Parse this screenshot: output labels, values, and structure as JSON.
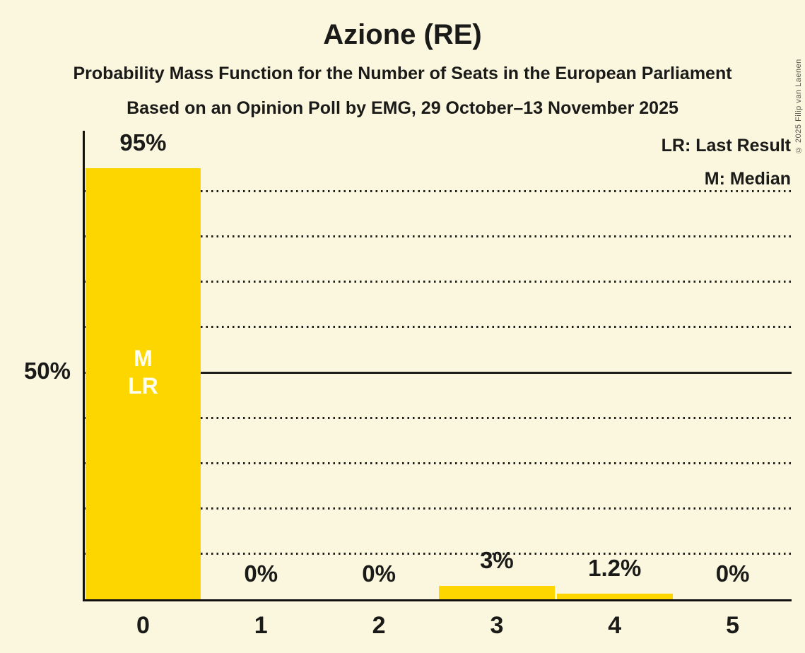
{
  "header": {
    "title": "Azione (RE)",
    "subtitle1": "Probability Mass Function for the Number of Seats in the European Parliament",
    "subtitle2": "Based on an Opinion Poll by EMG, 29 October–13 November 2025"
  },
  "legend": {
    "line1": "LR: Last Result",
    "line2": "M: Median"
  },
  "copyright": "© 2025 Filip van Laenen",
  "colors": {
    "background": "#FBF6DE",
    "bar": "#FDD600",
    "text": "#1A1A18",
    "gridline": "#1D1D1B",
    "annotation_text": "#FFFEF2"
  },
  "chart_data": {
    "type": "bar",
    "title": "Azione (RE)",
    "categories": [
      "0",
      "1",
      "2",
      "3",
      "4",
      "5"
    ],
    "values": [
      95,
      0,
      0,
      3,
      1.2,
      0
    ],
    "bar_labels": [
      "95%",
      "0%",
      "0%",
      "3%",
      "1.2%",
      "0%"
    ],
    "xlabel": "",
    "ylabel": "",
    "ylim": [
      0,
      100
    ],
    "y_tick_labels": [
      {
        "pct": 50,
        "text": "50%"
      }
    ],
    "y_gridlines_pct": [
      10,
      20,
      30,
      40,
      60,
      70,
      80,
      90
    ],
    "y_solid_line_pct": 50,
    "grid": "horizontal dotted",
    "legend_entries": [
      "LR: Last Result",
      "M: Median"
    ],
    "legend_position": "top-right",
    "annotations": [
      {
        "category": "0",
        "lines": [
          "M",
          "LR"
        ],
        "at_pct": 50
      }
    ]
  }
}
